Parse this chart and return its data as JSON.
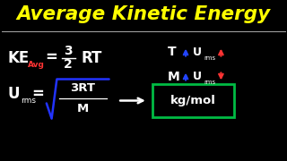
{
  "background_color": "#000000",
  "title": "Average Kinetic Energy",
  "title_color": "#FFFF00",
  "title_fontsize": 15.5,
  "line_color": "#aaaaaa",
  "formula_color": "#ffffff",
  "avg_color": "#ff3333",
  "blue_color": "#2233ff",
  "green_color": "#00bb44",
  "arrow_blue": "#2244ff",
  "arrow_red": "#ff3333",
  "xlim": [
    0,
    10
  ],
  "ylim": [
    0,
    6
  ]
}
